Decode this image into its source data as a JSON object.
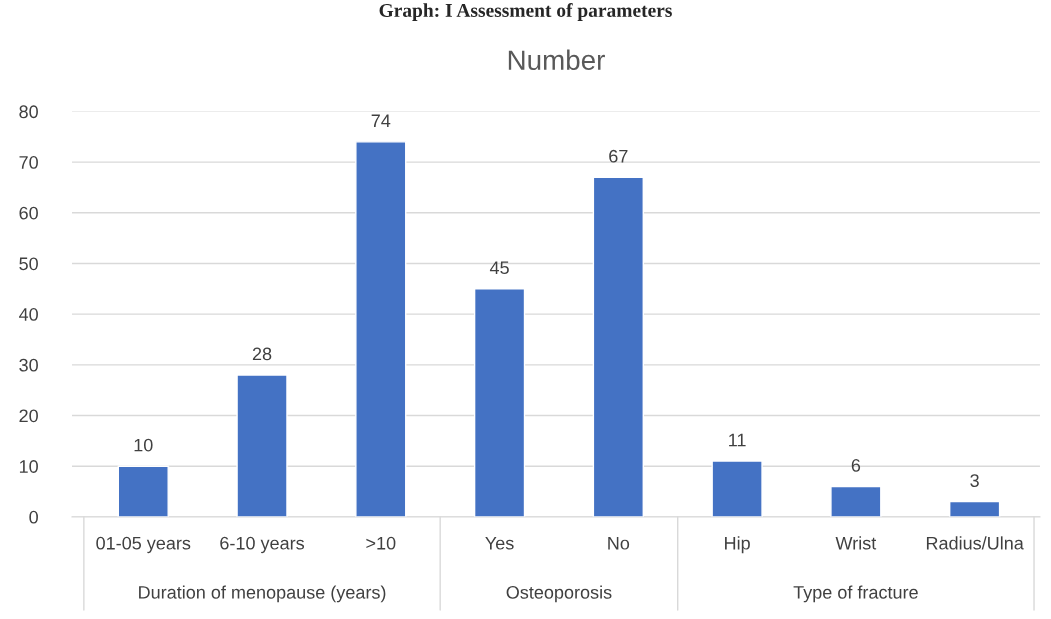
{
  "chart_data": {
    "type": "bar",
    "title": "Graph: I Assessment of parameters",
    "subtitle": "Number",
    "categories": [
      "01-05 years",
      "6-10 years",
      ">10",
      "Yes",
      "No",
      "Hip",
      "Wrist",
      "Radius/Ulna"
    ],
    "values": [
      10,
      28,
      74,
      45,
      67,
      11,
      6,
      3
    ],
    "color": "#4472c4",
    "ylim": [
      0,
      80
    ],
    "yticks": [
      0,
      10,
      20,
      30,
      40,
      50,
      60,
      70,
      80
    ],
    "grid": "y",
    "legend": false,
    "data_labels": true,
    "annotations": [
      "Duration of menopause (years)",
      "Osteoporosis",
      "Type of fracture"
    ]
  }
}
